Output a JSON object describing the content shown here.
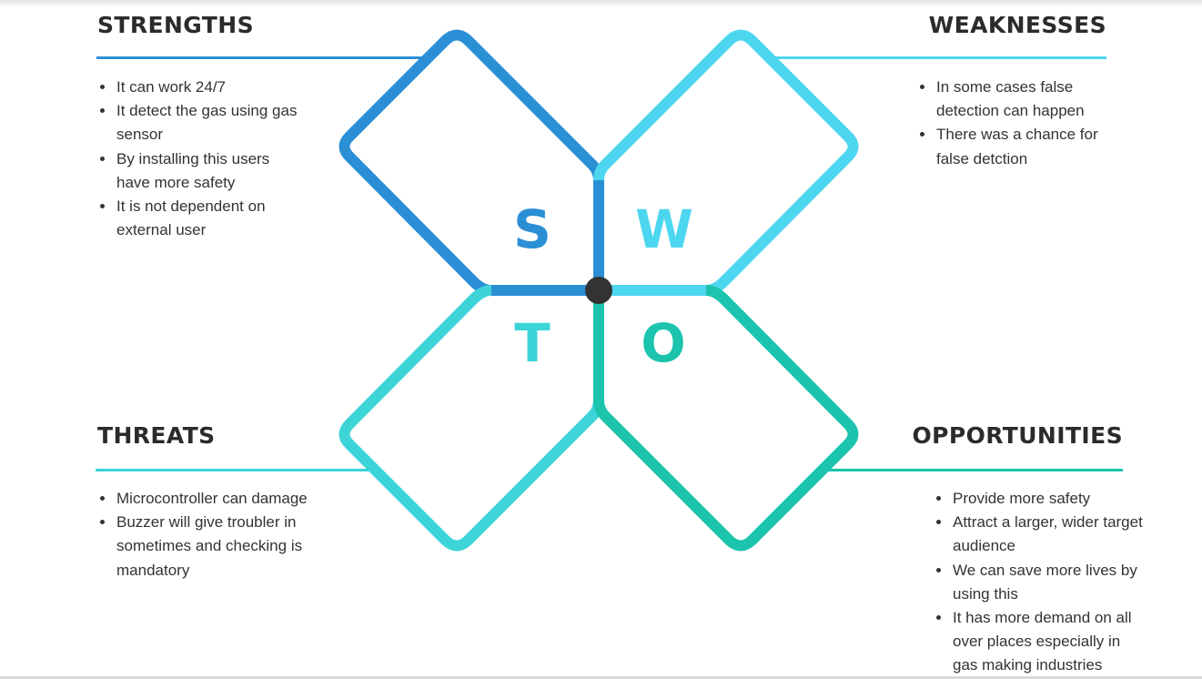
{
  "colors": {
    "strengths": "#2b8fd6",
    "weaknesses": "#4dd6ef",
    "threats": "#3dd4d7",
    "opportunities": "#1cc4ad",
    "center": "#333333",
    "heading_text": "#2b2b2b",
    "body_text": "#333333"
  },
  "strengths": {
    "title": "STRENGTHS",
    "letter": "S",
    "items": [
      "It can work 24/7",
      "It detect the gas using gas sensor",
      "By installing this users have more safety",
      "It is not dependent on external user"
    ]
  },
  "weaknesses": {
    "title": "WEAKNESSES",
    "letter": "W",
    "items": [
      "In some cases false detection can happen",
      "There was a chance for false detction"
    ]
  },
  "threats": {
    "title": "THREATS",
    "letter": "T",
    "items": [
      "Microcontroller can damage",
      "Buzzer will give troubler in sometimes and checking is mandatory"
    ]
  },
  "opportunities": {
    "title": "OPPORTUNITIES",
    "letter": "O",
    "items": [
      "Provide more safety",
      "Attract a larger, wider target audience",
      "We can save more lives by using this",
      "It has more demand on all over places especially in gas making industries"
    ]
  }
}
